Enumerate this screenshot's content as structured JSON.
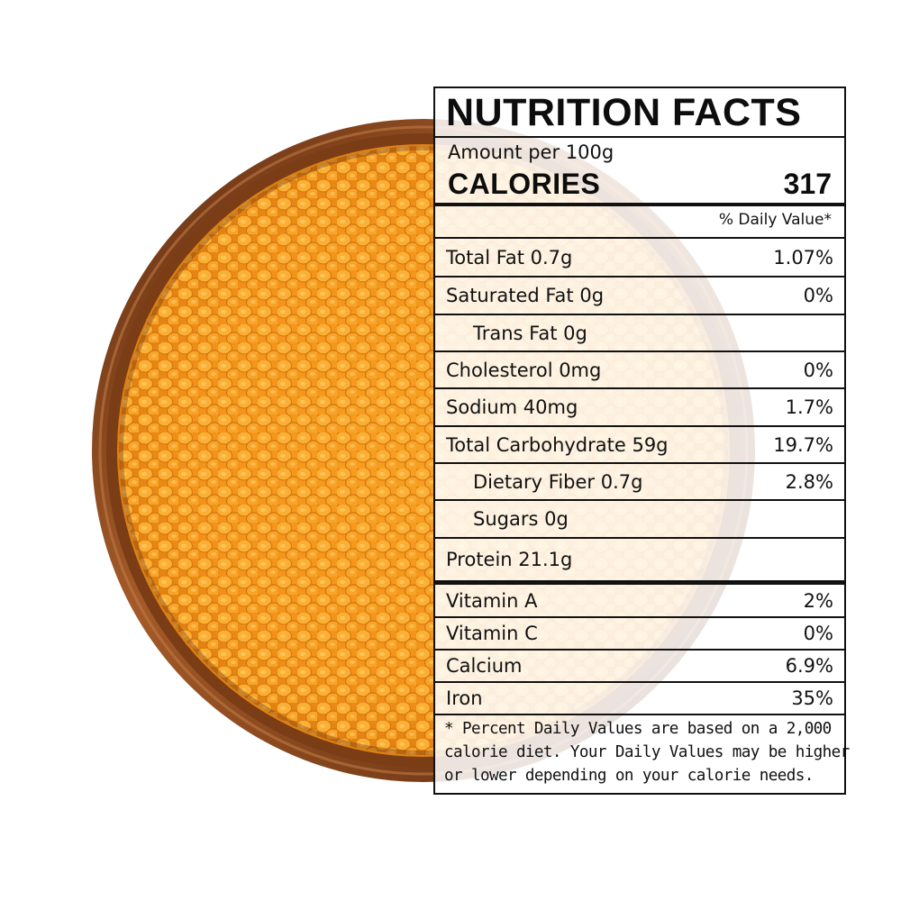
{
  "label": {
    "title": "NUTRITION FACTS",
    "serving": "Amount per 100g",
    "calories_label": "CALORIES",
    "calories_value": "317",
    "daily_value_header": "% Daily Value*",
    "nutrients": [
      {
        "name": "Total Fat 0.7g",
        "dv": "1.07%"
      },
      {
        "name": "Saturated Fat 0g",
        "dv": "0%"
      },
      {
        "name": "Trans Fat 0g",
        "dv": ""
      },
      {
        "name": "Cholesterol 0mg",
        "dv": "0%"
      },
      {
        "name": "Sodium 40mg",
        "dv": "1.7%"
      },
      {
        "name": "Total Carbohydrate 59g",
        "dv": "19.7%"
      },
      {
        "name": "Dietary Fiber 0.7g",
        "dv": "2.8%"
      },
      {
        "name": "Sugars 0g",
        "dv": ""
      },
      {
        "name": "Protein 21.1g",
        "dv": ""
      }
    ],
    "vitamins": [
      {
        "name": "Vitamin A",
        "dv": "2%"
      },
      {
        "name": "Vitamin C",
        "dv": "0%"
      },
      {
        "name": "Calcium",
        "dv": "6.9%"
      },
      {
        "name": "Iron",
        "dv": "35%"
      }
    ],
    "footnote": [
      "* Percent Daily Values are based on a 2,000",
      "calorie diet. Your Daily Values may be higher",
      "or lower depending on your calorie needs."
    ]
  },
  "colors": {
    "lentil": "#f39a1c",
    "bowl_wood": "#8a4a20"
  }
}
